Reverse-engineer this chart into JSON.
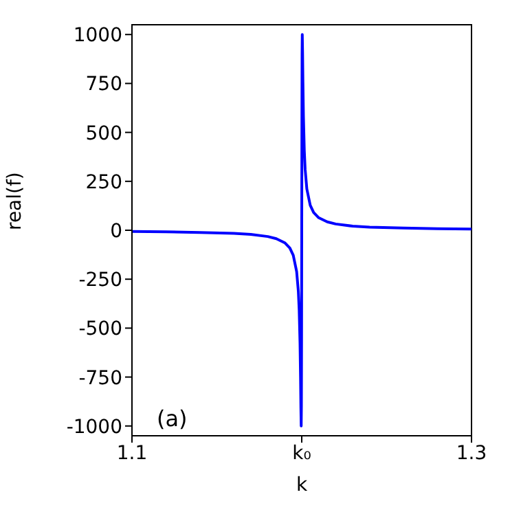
{
  "chart_data": {
    "type": "line",
    "xlabel": "k",
    "ylabel": "real(f)",
    "annotations": [
      "(a)"
    ],
    "x": [
      1.1,
      1.12,
      1.14,
      1.16,
      1.17,
      1.18,
      1.185,
      1.19,
      1.193,
      1.195,
      1.197,
      1.198,
      1.1985,
      1.199,
      1.1993,
      1.1995,
      1.19968,
      1.1998,
      1.1999,
      1.2,
      1.2001,
      1.2002,
      1.20032,
      1.2005,
      1.2007,
      1.201,
      1.2015,
      1.202,
      1.203,
      1.205,
      1.207,
      1.21,
      1.215,
      1.22,
      1.23,
      1.24,
      1.26,
      1.28,
      1.3
    ],
    "series": [
      {
        "color": "#0000ff",
        "values": [
          -6,
          -8,
          -11,
          -16,
          -21,
          -32,
          -43,
          -64,
          -91,
          -128,
          -211,
          -312,
          -408,
          -581,
          -756,
          -908,
          -1000,
          -899,
          -569,
          0,
          569,
          899,
          1000,
          908,
          756,
          581,
          408,
          312,
          211,
          128,
          91,
          64,
          43,
          32,
          21,
          16,
          11,
          8,
          6
        ]
      }
    ],
    "xlim": [
      1.1,
      1.3
    ],
    "xticks": [
      1.1,
      {
        "value": 1.2,
        "label": "k₀"
      },
      1.3
    ],
    "ylim": [
      -1050,
      1050
    ],
    "yticks": [
      -1000,
      -750,
      -500,
      -250,
      0,
      250,
      500,
      750,
      1000
    ],
    "grid": false,
    "legend": false,
    "marker": "none",
    "line_style": "solid"
  }
}
